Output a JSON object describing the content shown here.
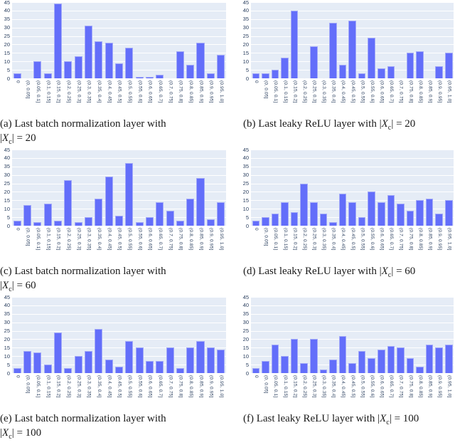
{
  "colors": {
    "bar": "#636efa",
    "bar_edge": "#a4abf8",
    "plot_bg": "#e5ecf6",
    "gridline": "#ffffff",
    "tick_text": "#2a3f5f"
  },
  "figures": [
    {
      "caption": {
        "prefix": "(a) Last batch normalization layer with ",
        "math_open": "|",
        "math_var": "X",
        "math_sub": "c",
        "math_close": "| = 20"
      }
    },
    {
      "caption": {
        "prefix": "(b) Last leaky ReLU layer with ",
        "math_open": "|",
        "math_var": "X",
        "math_sub": "c",
        "math_close": "| = 20"
      }
    },
    {
      "caption": {
        "prefix": "(c) Last batch normalization layer with ",
        "math_open": "|",
        "math_var": "X",
        "math_sub": "c",
        "math_close": "| = 60"
      }
    },
    {
      "caption": {
        "prefix": "(d) Last leaky ReLU layer with ",
        "math_open": "|",
        "math_var": "X",
        "math_sub": "c",
        "math_close": "| = 60"
      }
    },
    {
      "caption": {
        "prefix": "(e) Last batch normalization layer with ",
        "math_open": "|",
        "math_var": "X",
        "math_sub": "c",
        "math_close": "| = 100"
      }
    },
    {
      "caption": {
        "prefix": "(f) Last leaky ReLU layer with ",
        "math_open": "|",
        "math_var": "X",
        "math_sub": "c",
        "math_close": "| = 100"
      }
    }
  ],
  "chart_data": [
    {
      "type": "bar",
      "title": "(a) Last batch normalization layer with |X_c| = 20",
      "categories": [
        "0",
        "(0, 0.05]",
        "(0.05, 0.1]",
        "(0.1, 0.15]",
        "(0.15, 0.2]",
        "(0.2, 0.25]",
        "(0.25, 0.3]",
        "(0.3, 0.35]",
        "(0.35, 0.4]",
        "(0.4, 0.45]",
        "(0.45, 0.5]",
        "(0.5, 0.55]",
        "(0.55, 0.6]",
        "(0.6, 0.65]",
        "(0.65, 0.7]",
        "(0.7, 0.75]",
        "(0.75, 0.8]",
        "(0.8, 0.85]",
        "(0.85, 0.9]",
        "(0.9, 0.95]",
        "(0.95, 1.0]"
      ],
      "values": [
        3,
        0,
        10,
        3,
        44,
        10,
        13,
        31,
        22,
        21,
        9,
        18,
        1,
        1,
        2,
        0,
        16,
        8,
        21,
        3,
        14
      ],
      "ylim": [
        0,
        45
      ],
      "yticks": [
        0,
        5,
        10,
        15,
        20,
        25,
        30,
        35,
        40,
        45
      ],
      "grid": true,
      "legend": false
    },
    {
      "type": "bar",
      "title": "(b) Last leaky ReLU layer with |X_c| = 20",
      "categories": [
        "0",
        "(0, 0.05]",
        "(0.05, 0.1]",
        "(0.1, 0.15]",
        "(0.15, 0.2]",
        "(0.2, 0.25]",
        "(0.25, 0.3]",
        "(0.3, 0.35]",
        "(0.35, 0.4]",
        "(0.4, 0.45]",
        "(0.45, 0.5]",
        "(0.5, 0.55]",
        "(0.55, 0.6]",
        "(0.6, 0.65]",
        "(0.65, 0.7]",
        "(0.7, 0.75]",
        "(0.75, 0.8]",
        "(0.8, 0.85]",
        "(0.85, 0.9]",
        "(0.9, 0.95]",
        "(0.95, 1.0]"
      ],
      "values": [
        3,
        3,
        5,
        12,
        40,
        0,
        19,
        0,
        33,
        8,
        34,
        3,
        24,
        6,
        7,
        0,
        15,
        16,
        0,
        7,
        15
      ],
      "ylim": [
        0,
        45
      ],
      "yticks": [
        0,
        5,
        10,
        15,
        20,
        25,
        30,
        35,
        40,
        45
      ],
      "grid": true,
      "legend": false
    },
    {
      "type": "bar",
      "title": "(c) Last batch normalization layer with |X_c| = 60",
      "categories": [
        "0",
        "(0, 0.05]",
        "(0.05, 0.1]",
        "(0.1, 0.15]",
        "(0.15, 0.2]",
        "(0.2, 0.25]",
        "(0.25, 0.3]",
        "(0.3, 0.35]",
        "(0.35, 0.4]",
        "(0.4, 0.45]",
        "(0.45, 0.5]",
        "(0.5, 0.55]",
        "(0.55, 0.6]",
        "(0.6, 0.65]",
        "(0.65, 0.7]",
        "(0.7, 0.75]",
        "(0.75, 0.8]",
        "(0.8, 0.85]",
        "(0.85, 0.9]",
        "(0.9, 0.95]",
        "(0.95, 1.0]"
      ],
      "values": [
        3,
        12,
        2,
        13,
        3,
        27,
        2,
        5,
        16,
        29,
        6,
        37,
        2,
        5,
        14,
        9,
        3,
        16,
        28,
        4,
        14
      ],
      "ylim": [
        0,
        45
      ],
      "yticks": [
        0,
        5,
        10,
        15,
        20,
        25,
        30,
        35,
        40,
        45
      ],
      "grid": true,
      "legend": false
    },
    {
      "type": "bar",
      "title": "(d) Last leaky ReLU layer with |X_c| = 60",
      "categories": [
        "0",
        "(0, 0.05]",
        "(0.05, 0.1]",
        "(0.1, 0.15]",
        "(0.15, 0.2]",
        "(0.2, 0.25]",
        "(0.25, 0.3]",
        "(0.3, 0.35]",
        "(0.35, 0.4]",
        "(0.4, 0.45]",
        "(0.45, 0.5]",
        "(0.5, 0.55]",
        "(0.55, 0.6]",
        "(0.6, 0.65]",
        "(0.65, 0.7]",
        "(0.7, 0.75]",
        "(0.75, 0.8]",
        "(0.8, 0.85]",
        "(0.85, 0.9]",
        "(0.9, 0.95]",
        "(0.95, 1.0]"
      ],
      "values": [
        3,
        5,
        7,
        14,
        8,
        25,
        14,
        7,
        2,
        19,
        14,
        5,
        20,
        14,
        18,
        13,
        9,
        15,
        16,
        7,
        15
      ],
      "ylim": [
        0,
        45
      ],
      "yticks": [
        0,
        5,
        10,
        15,
        20,
        25,
        30,
        35,
        40,
        45
      ],
      "grid": true,
      "legend": false
    },
    {
      "type": "bar",
      "title": "(e) Last batch normalization layer with |X_c| = 100",
      "categories": [
        "0",
        "(0, 0.05]",
        "(0.05, 0.1]",
        "(0.1, 0.15]",
        "(0.15, 0.2]",
        "(0.2, 0.25]",
        "(0.25, 0.3]",
        "(0.3, 0.35]",
        "(0.35, 0.4]",
        "(0.4, 0.45]",
        "(0.45, 0.5]",
        "(0.5, 0.55]",
        "(0.55, 0.6]",
        "(0.6, 0.65]",
        "(0.65, 0.7]",
        "(0.7, 0.75]",
        "(0.75, 0.8]",
        "(0.8, 0.85]",
        "(0.85, 0.9]",
        "(0.9, 0.95]",
        "(0.95, 1.0]"
      ],
      "values": [
        3,
        13,
        12,
        5,
        24,
        3,
        10,
        13,
        26,
        8,
        4,
        19,
        15,
        7,
        7,
        15,
        3,
        15,
        19,
        15,
        14
      ],
      "ylim": [
        0,
        45
      ],
      "yticks": [
        0,
        5,
        10,
        15,
        20,
        25,
        30,
        35,
        40,
        45
      ],
      "grid": true,
      "legend": false
    },
    {
      "type": "bar",
      "title": "(f) Last leaky ReLU layer with |X_c| = 100",
      "categories": [
        "0",
        "(0, 0.05]",
        "(0.05, 0.1]",
        "(0.1, 0.15]",
        "(0.15, 0.2]",
        "(0.2, 0.25]",
        "(0.25, 0.3]",
        "(0.3, 0.35]",
        "(0.35, 0.4]",
        "(0.4, 0.45]",
        "(0.45, 0.5]",
        "(0.5, 0.55]",
        "(0.55, 0.6]",
        "(0.6, 0.65]",
        "(0.65, 0.7]",
        "(0.7, 0.75]",
        "(0.75, 0.8]",
        "(0.8, 0.85]",
        "(0.85, 0.9]",
        "(0.9, 0.95]",
        "(0.95, 1.0]"
      ],
      "values": [
        3,
        7,
        17,
        10,
        20,
        6,
        20,
        2,
        8,
        22,
        6,
        13,
        9,
        14,
        16,
        15,
        9,
        4,
        17,
        15,
        17
      ],
      "ylim": [
        0,
        45
      ],
      "yticks": [
        0,
        5,
        10,
        15,
        20,
        25,
        30,
        35,
        40,
        45
      ],
      "grid": true,
      "legend": false
    }
  ]
}
